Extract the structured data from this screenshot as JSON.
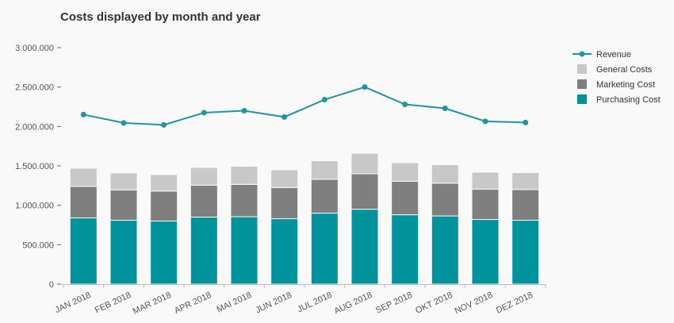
{
  "chart_data": {
    "type": "bar",
    "title": "Costs displayed by month and year",
    "categories": [
      "JAN 2018",
      "FEB 2018",
      "MAR 2018",
      "APR 2018",
      "MAI 2018",
      "JUN 2018",
      "JUL 2018",
      "AUG 2018",
      "SEP 2018",
      "OKT 2018",
      "NOV 2018",
      "DEZ 2018"
    ],
    "stacked": true,
    "series": [
      {
        "name": "Purchasing Cost",
        "kind": "bar",
        "color": "#00939c",
        "values": [
          840000,
          810000,
          800000,
          850000,
          855000,
          830000,
          900000,
          950000,
          880000,
          865000,
          820000,
          810000
        ]
      },
      {
        "name": "Marketing Cost",
        "kind": "bar",
        "color": "#7f7f7f",
        "values": [
          400000,
          385000,
          380000,
          405000,
          410000,
          395000,
          430000,
          450000,
          425000,
          415000,
          385000,
          390000
        ]
      },
      {
        "name": "General Costs",
        "kind": "bar",
        "color": "#c8c8c8",
        "values": [
          230000,
          215000,
          210000,
          225000,
          230000,
          225000,
          235000,
          260000,
          235000,
          235000,
          215000,
          215000
        ]
      },
      {
        "name": "Revenue",
        "kind": "line",
        "color": "#1f959c",
        "values": [
          2150000,
          2045000,
          2020000,
          2175000,
          2200000,
          2120000,
          2340000,
          2500000,
          2280000,
          2230000,
          2065000,
          2050000
        ]
      }
    ],
    "legend_order": [
      "Revenue",
      "General Costs",
      "Marketing Cost",
      "Purchasing Cost"
    ],
    "y_ticks": [
      0,
      500000,
      1000000,
      1500000,
      2000000,
      2500000,
      3000000
    ],
    "y_tick_labels": [
      "0",
      "500.000",
      "1.000.000",
      "1.500.000",
      "2.000.000",
      "2.500.000",
      "3.000.000"
    ],
    "ylim": [
      0,
      3000000
    ],
    "grid": false,
    "legend_position": "top-right"
  }
}
